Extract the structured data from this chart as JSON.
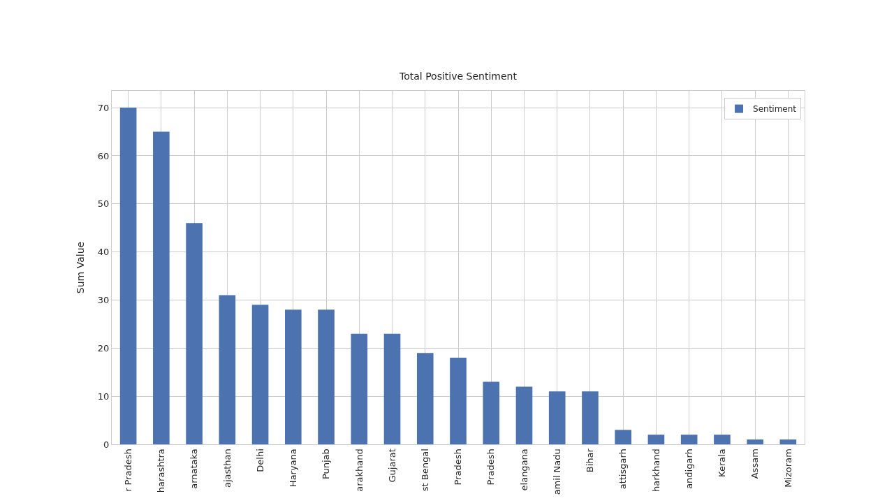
{
  "chart_data": {
    "type": "bar",
    "title": "Total Positive Sentiment",
    "ylabel": "Sum Value",
    "categories": [
      "r Pradesh",
      "harashtra",
      "arnataka",
      "ajasthan",
      "Delhi",
      "Haryana",
      "Punjab",
      "arakhand",
      "Gujarat",
      "st Bengal",
      "Pradesh",
      "Pradesh",
      "elangana",
      "amil Nadu",
      "Bihar",
      "attisgarh",
      "harkhand",
      "andigarh",
      "Kerala",
      "Assam",
      "Mizoram"
    ],
    "series": [
      {
        "name": "Sentiment",
        "color": "#4c72b0",
        "values": [
          70,
          65,
          46,
          31,
          29,
          28,
          28,
          23,
          23,
          19,
          18,
          13,
          12,
          11,
          11,
          3,
          2,
          2,
          2,
          1,
          1
        ]
      }
    ],
    "ylim": [
      0,
      73.5
    ],
    "yticks": [
      0,
      10,
      20,
      30,
      40,
      50,
      60,
      70
    ],
    "grid": true,
    "legend": "top right"
  }
}
